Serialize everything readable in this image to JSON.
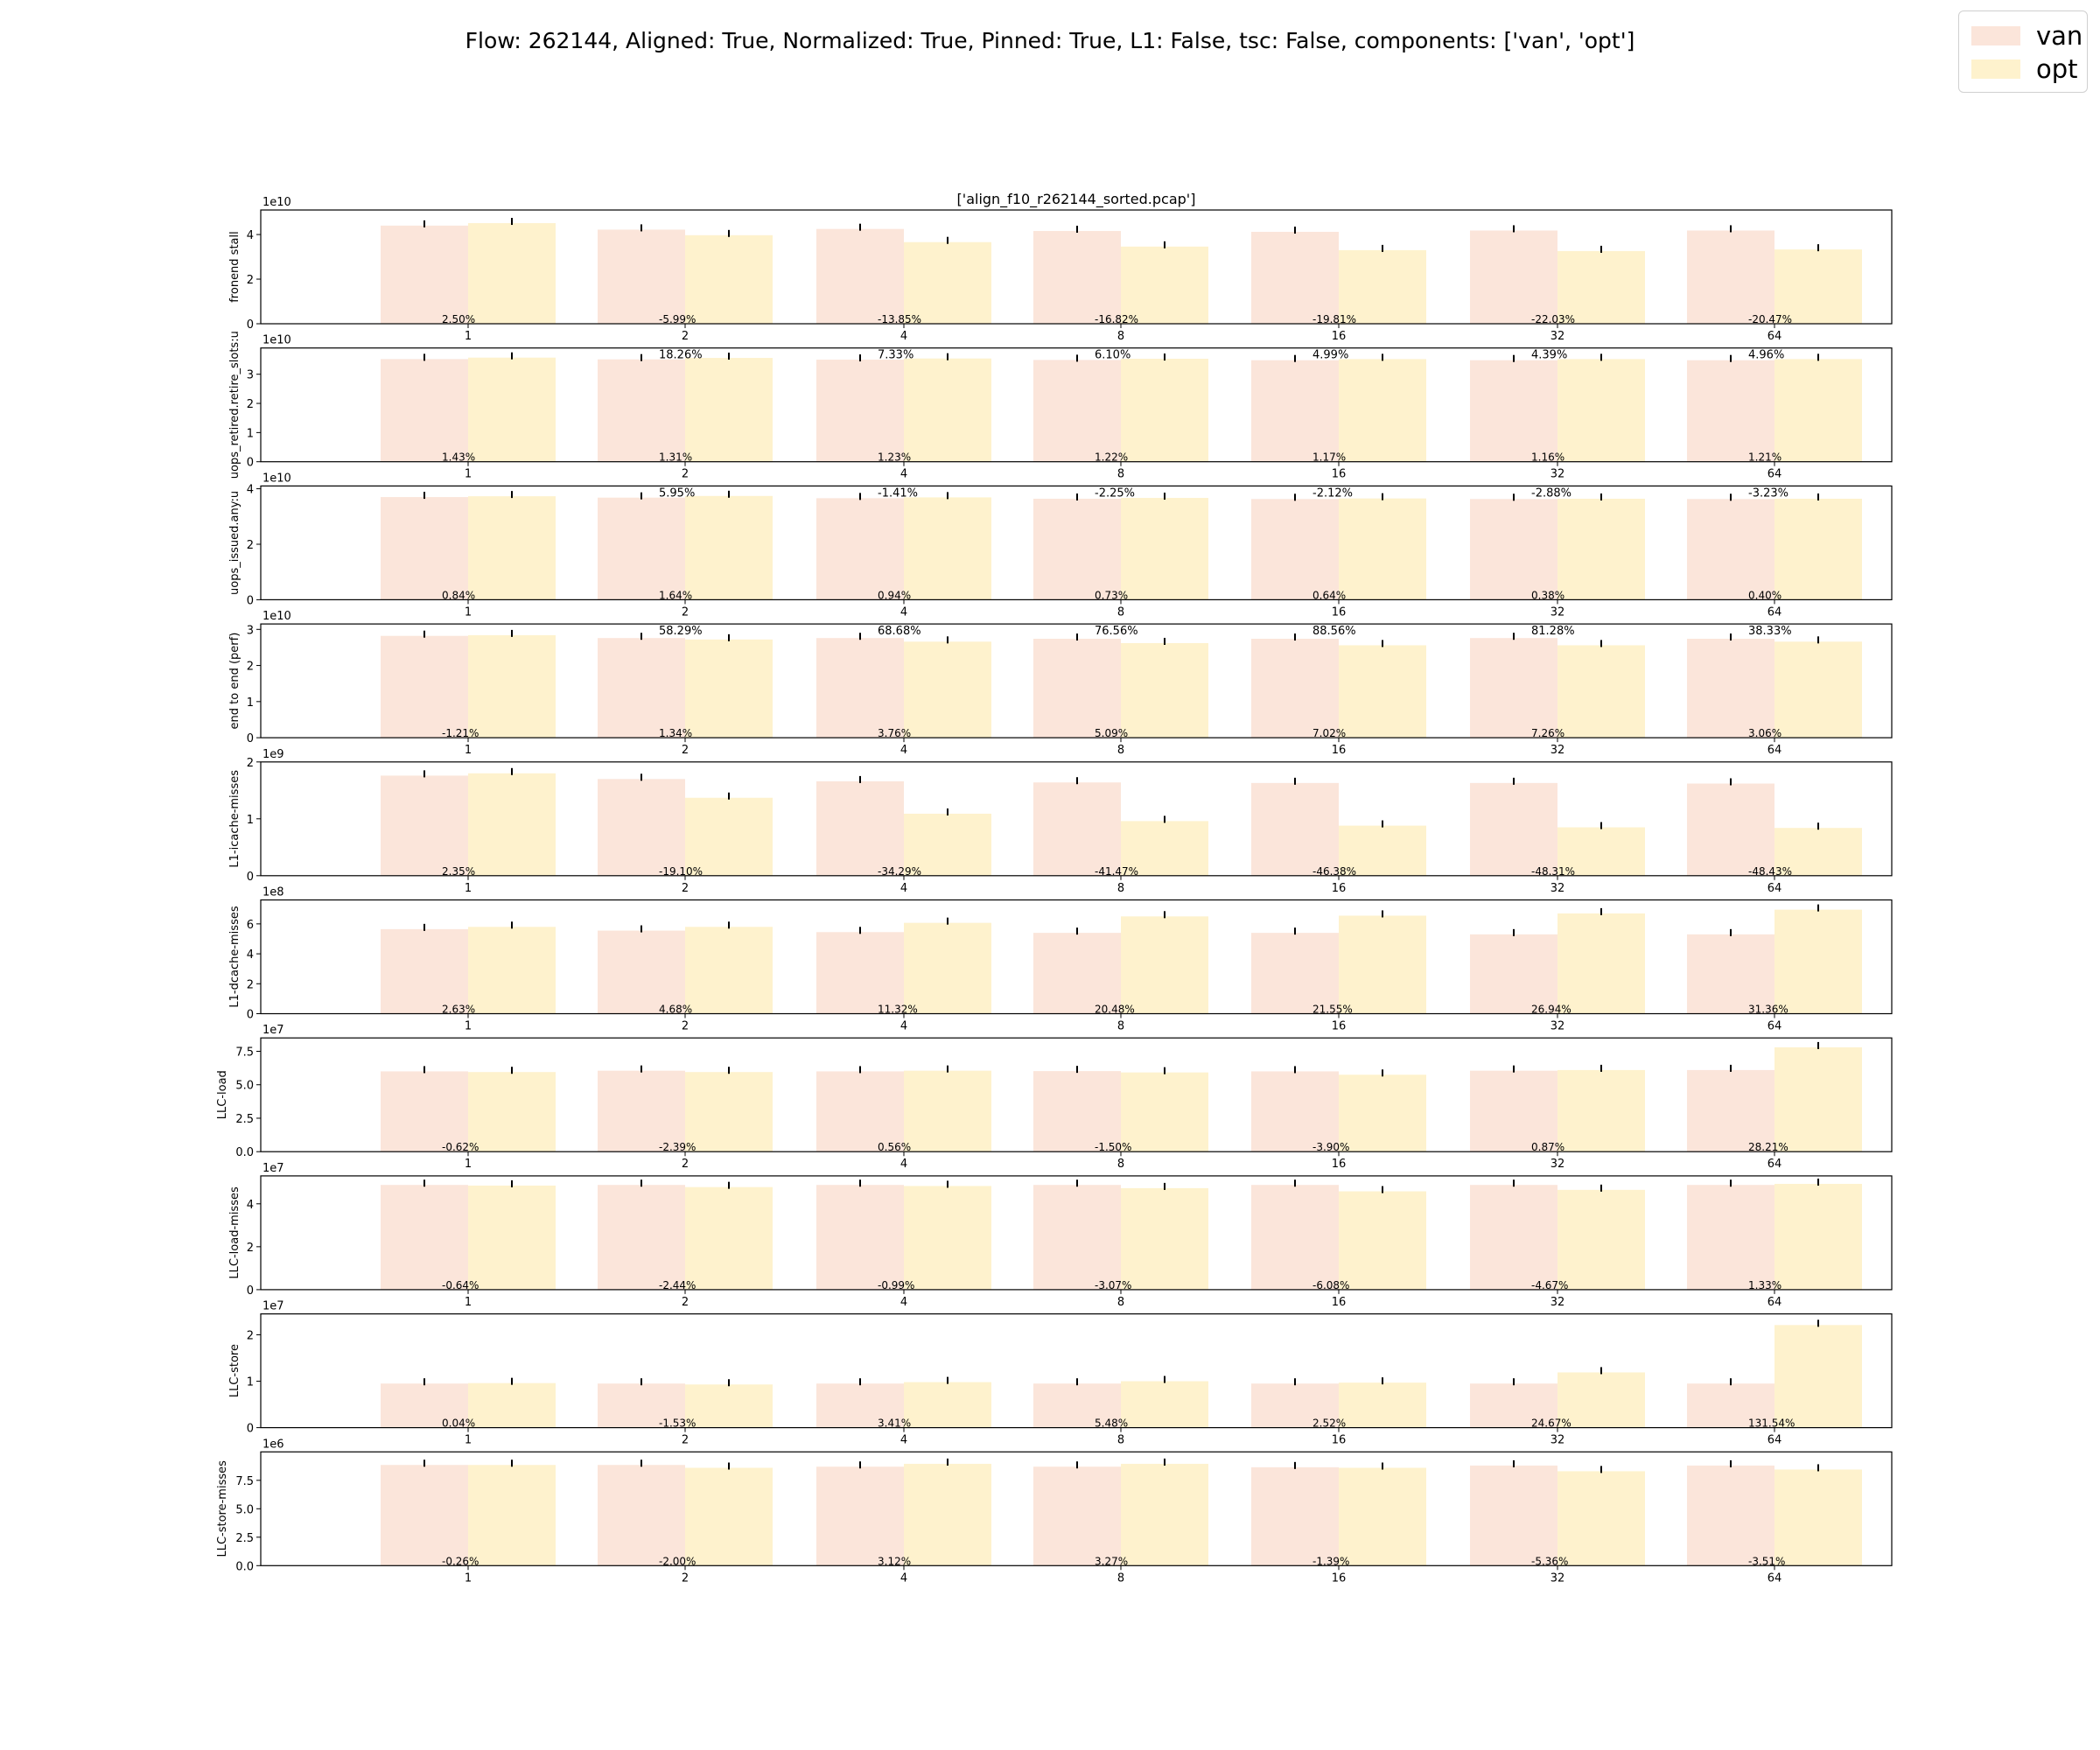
{
  "figure": {
    "title": "Flow: 262144, Aligned: True, Normalized: True, Pinned: True, L1: False, tsc: False, components: ['van', 'opt']",
    "subplot_title": "['align_f10_r262144_sorted.pcap']"
  },
  "legend": [
    {
      "name": "van",
      "color": "#fbe5da"
    },
    {
      "name": "opt",
      "color": "#fef2cd"
    }
  ],
  "chart_data": {
    "type": "bar",
    "categories": [
      "1",
      "2",
      "4",
      "8",
      "16",
      "32",
      "64"
    ],
    "series_names": [
      "van",
      "opt"
    ],
    "colors": {
      "van": "#fbe5da",
      "opt": "#fef2cd"
    },
    "panels": [
      {
        "ylabel": "fronend stall",
        "exponent": "1e10",
        "ylim": [
          0,
          5.1
        ],
        "yticks": [
          "0",
          "2",
          "4"
        ],
        "van": [
          4.4,
          4.22,
          4.25,
          4.16,
          4.12,
          4.18,
          4.18
        ],
        "opt": [
          4.51,
          3.97,
          3.66,
          3.46,
          3.3,
          3.26,
          3.33
        ],
        "top_labels": [],
        "bottom_labels": [
          "2.50%",
          "-5.99%",
          "-13.85%",
          "-16.82%",
          "-19.81%",
          "-22.03%",
          "-20.47%"
        ]
      },
      {
        "ylabel": "uops_retired.retire_slots:u",
        "exponent": "1e10",
        "ylim": [
          0,
          3.9
        ],
        "yticks": [
          "0",
          "1",
          "2",
          "3"
        ],
        "van": [
          3.52,
          3.51,
          3.5,
          3.49,
          3.48,
          3.48,
          3.48
        ],
        "opt": [
          3.57,
          3.56,
          3.54,
          3.53,
          3.52,
          3.52,
          3.52
        ],
        "top_labels": [
          "",
          "18.26%",
          "7.33%",
          "6.10%",
          "4.99%",
          "4.39%",
          "4.96%"
        ],
        "bottom_labels": [
          "1.43%",
          "1.31%",
          "1.23%",
          "1.22%",
          "1.17%",
          "1.16%",
          "1.21%"
        ]
      },
      {
        "ylabel": "uops_issued.any:u",
        "exponent": "1e10",
        "ylim": [
          0,
          4.1
        ],
        "yticks": [
          "0",
          "2",
          "4"
        ],
        "van": [
          3.7,
          3.68,
          3.66,
          3.64,
          3.63,
          3.63,
          3.63
        ],
        "opt": [
          3.73,
          3.74,
          3.69,
          3.67,
          3.65,
          3.64,
          3.64
        ],
        "top_labels": [
          "",
          "5.95%",
          "-1.41%",
          "-2.25%",
          "-2.12%",
          "-2.88%",
          "-3.23%"
        ],
        "bottom_labels": [
          "0.84%",
          "1.64%",
          "0.94%",
          "0.73%",
          "0.64%",
          "0.38%",
          "0.40%"
        ]
      },
      {
        "ylabel": "end to end (perf)",
        "exponent": "1e10",
        "ylim": [
          0,
          3.15
        ],
        "yticks": [
          "0",
          "1",
          "2",
          "3"
        ],
        "van": [
          2.82,
          2.76,
          2.76,
          2.74,
          2.74,
          2.76,
          2.74
        ],
        "opt": [
          2.84,
          2.72,
          2.66,
          2.62,
          2.56,
          2.56,
          2.66
        ],
        "top_labels": [
          "",
          "58.29%",
          "68.68%",
          "76.56%",
          "88.56%",
          "81.28%",
          "38.33%"
        ],
        "bottom_labels": [
          "-1.21%",
          "1.34%",
          "3.76%",
          "5.09%",
          "7.02%",
          "7.26%",
          "3.06%"
        ]
      },
      {
        "ylabel": "L1-icache-misses",
        "exponent": "1e9",
        "ylim": [
          0,
          2.0
        ],
        "yticks": [
          "0",
          "1",
          "2"
        ],
        "van": [
          1.76,
          1.7,
          1.66,
          1.64,
          1.63,
          1.63,
          1.62
        ],
        "opt": [
          1.8,
          1.37,
          1.09,
          0.96,
          0.88,
          0.85,
          0.84
        ],
        "top_labels": [],
        "bottom_labels": [
          "2.35%",
          "-19.10%",
          "-34.29%",
          "-41.47%",
          "-46.38%",
          "-48.31%",
          "-48.43%"
        ]
      },
      {
        "ylabel": "L1-dcache-misses",
        "exponent": "1e8",
        "ylim": [
          0,
          7.6
        ],
        "yticks": [
          "0",
          "2",
          "4",
          "6"
        ],
        "van": [
          5.65,
          5.55,
          5.45,
          5.4,
          5.4,
          5.3,
          5.3
        ],
        "opt": [
          5.8,
          5.8,
          6.07,
          6.5,
          6.55,
          6.7,
          6.95
        ],
        "top_labels": [],
        "bottom_labels": [
          "2.63%",
          "4.68%",
          "11.32%",
          "20.48%",
          "21.55%",
          "26.94%",
          "31.36%"
        ]
      },
      {
        "ylabel": "LLC-load",
        "exponent": "1e7",
        "ylim": [
          0,
          8.5
        ],
        "yticks": [
          "0.0",
          "2.5",
          "5.0",
          "7.5"
        ],
        "van": [
          6.0,
          6.05,
          6.0,
          6.02,
          6.0,
          6.05,
          6.1
        ],
        "opt": [
          5.95,
          5.95,
          6.05,
          5.92,
          5.75,
          6.1,
          7.8
        ],
        "top_labels": [],
        "bottom_labels": [
          "-0.62%",
          "-2.39%",
          "0.56%",
          "-1.50%",
          "-3.90%",
          "0.87%",
          "28.21%"
        ]
      },
      {
        "ylabel": "LLC-load-misses",
        "exponent": "1e7",
        "ylim": [
          0,
          5.3
        ],
        "yticks": [
          "0",
          "2",
          "4"
        ],
        "van": [
          4.88,
          4.88,
          4.88,
          4.88,
          4.88,
          4.88,
          4.88
        ],
        "opt": [
          4.85,
          4.78,
          4.83,
          4.73,
          4.58,
          4.65,
          4.93
        ],
        "top_labels": [],
        "bottom_labels": [
          "-0.64%",
          "-2.44%",
          "-0.99%",
          "-3.07%",
          "-6.08%",
          "-4.67%",
          "1.33%"
        ]
      },
      {
        "ylabel": "LLC-store",
        "exponent": "1e7",
        "ylim": [
          0,
          2.45
        ],
        "yticks": [
          "0",
          "1",
          "2"
        ],
        "van": [
          0.95,
          0.95,
          0.95,
          0.95,
          0.95,
          0.95,
          0.95
        ],
        "opt": [
          0.96,
          0.93,
          0.98,
          1.0,
          0.97,
          1.19,
          2.21
        ],
        "top_labels": [],
        "bottom_labels": [
          "0.04%",
          "-1.53%",
          "3.41%",
          "5.48%",
          "2.52%",
          "24.67%",
          "131.54%"
        ]
      },
      {
        "ylabel": "LLC-store-misses",
        "exponent": "1e6",
        "ylim": [
          0,
          10.0
        ],
        "yticks": [
          "0.0",
          "2.5",
          "5.0",
          "7.5"
        ],
        "van": [
          8.85,
          8.85,
          8.7,
          8.7,
          8.65,
          8.8,
          8.8
        ],
        "opt": [
          8.85,
          8.6,
          8.95,
          8.95,
          8.6,
          8.3,
          8.45
        ],
        "top_labels": [],
        "bottom_labels": [
          "-0.26%",
          "-2.00%",
          "3.12%",
          "3.27%",
          "-1.39%",
          "-5.36%",
          "-3.51%"
        ]
      }
    ]
  }
}
